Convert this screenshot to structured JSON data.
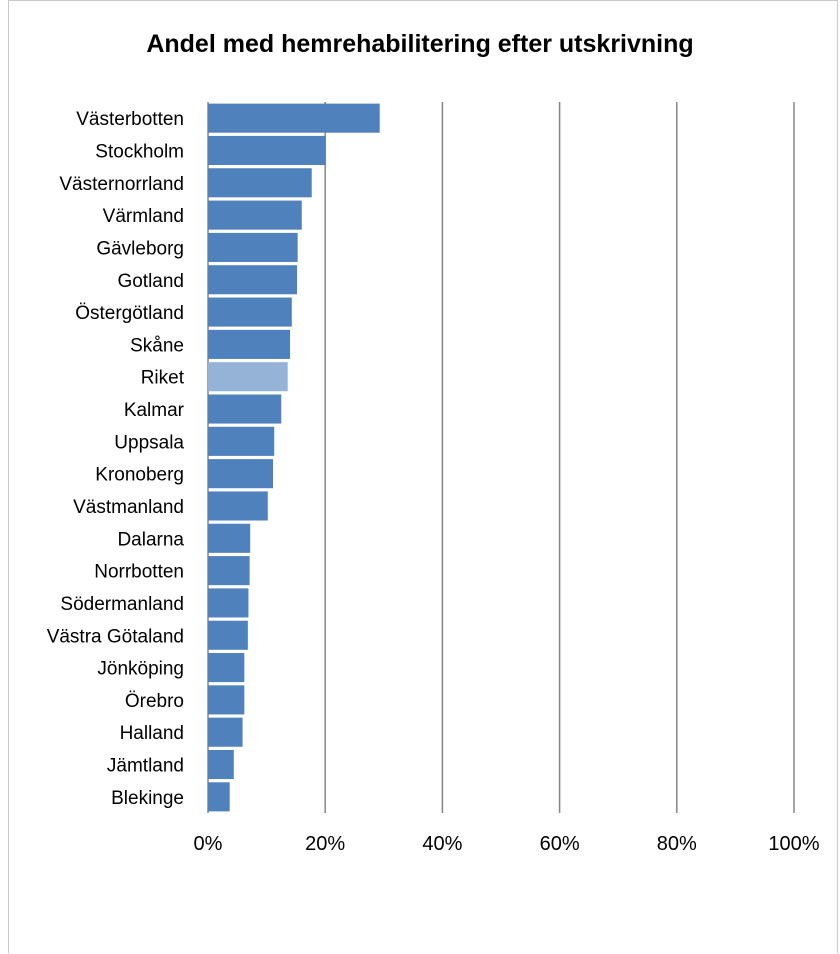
{
  "chart_data": {
    "type": "bar",
    "orientation": "horizontal",
    "title": "Andel med hemrehabilitering efter utskrivning",
    "xlabel": "",
    "ylabel": "",
    "categories": [
      "Västerbotten",
      "Stockholm",
      "Västernorrland",
      "Värmland",
      "Gävleborg",
      "Gotland",
      "Östergötland",
      "Skåne",
      "Riket",
      "Kalmar",
      "Uppsala",
      "Kronoberg",
      "Västmanland",
      "Dalarna",
      "Norrbotten",
      "Södermanland",
      "Västra Götaland",
      "Jönköping",
      "Örebro",
      "Halland",
      "Jämtland",
      "Blekinge"
    ],
    "values": [
      29.3,
      20.1,
      17.7,
      16.0,
      15.3,
      15.2,
      14.3,
      14.0,
      13.6,
      12.5,
      11.3,
      11.1,
      10.2,
      7.2,
      7.1,
      6.9,
      6.8,
      6.2,
      6.2,
      5.9,
      4.4,
      3.7
    ],
    "highlight_category": "Riket",
    "xlim": [
      0,
      100
    ],
    "xticks": [
      "0%",
      "20%",
      "40%",
      "60%",
      "80%",
      "100%"
    ],
    "grid": "vertical",
    "legend": "none",
    "colors": {
      "bar": "#4f81bd",
      "highlight": "#95b3d7",
      "grid": "#868686"
    }
  }
}
